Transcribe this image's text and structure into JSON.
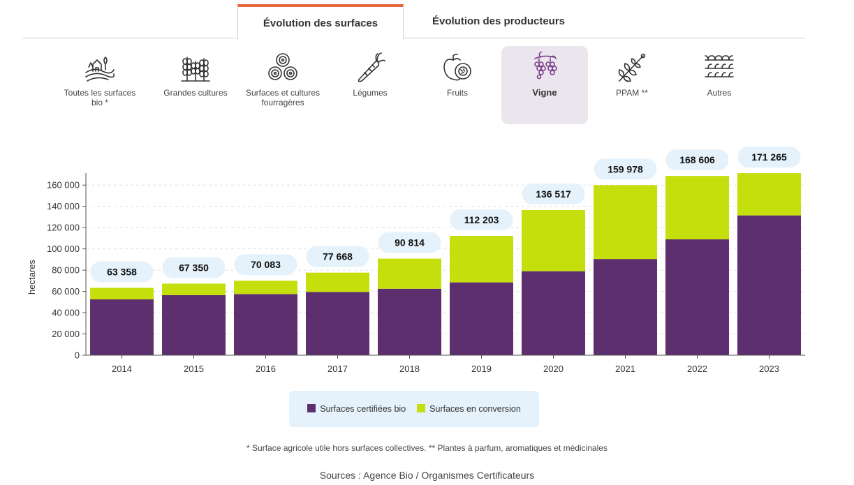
{
  "tabs": [
    {
      "label": "Évolution des surfaces",
      "active": true
    },
    {
      "label": "Évolution des producteurs",
      "active": false
    }
  ],
  "categories": [
    {
      "label": "Toutes les surfaces bio *",
      "icon": "farm-icon",
      "active": false
    },
    {
      "label": "Grandes cultures",
      "icon": "wheat-icon",
      "active": false
    },
    {
      "label": "Surfaces et cultures fourragères",
      "icon": "hay-bales-icon",
      "active": false
    },
    {
      "label": "Légumes",
      "icon": "carrot-icon",
      "active": false
    },
    {
      "label": "Fruits",
      "icon": "fruits-icon",
      "active": false
    },
    {
      "label": "Vigne",
      "icon": "grapes-icon",
      "active": true
    },
    {
      "label": "PPAM **",
      "icon": "herb-icon",
      "active": false
    },
    {
      "label": "Autres",
      "icon": "rows-plants-icon",
      "active": false
    }
  ],
  "colors": {
    "certified": "#5e2f6e",
    "conversion": "#c5df0d",
    "accent": "#e8663d",
    "label_bubble": "#e5f2fb"
  },
  "chart_data": {
    "type": "bar",
    "stacked": true,
    "categories": [
      "2014",
      "2015",
      "2016",
      "2017",
      "2018",
      "2019",
      "2020",
      "2021",
      "2022",
      "2023"
    ],
    "series": [
      {
        "name": "Surfaces certifiées bio",
        "values": [
          52500,
          56500,
          57500,
          59500,
          62500,
          68500,
          79000,
          90500,
          109000,
          131500
        ]
      },
      {
        "name": "Surfaces en conversion",
        "values": [
          10858,
          10850,
          12583,
          18168,
          28314,
          43703,
          57517,
          69478,
          59606,
          39765
        ]
      }
    ],
    "totals": [
      63358,
      67350,
      70083,
      77668,
      90814,
      112203,
      136517,
      159978,
      168606,
      171265
    ],
    "total_labels": [
      "63 358",
      "67 350",
      "70 083",
      "77 668",
      "90 814",
      "112 203",
      "136 517",
      "159 978",
      "168 606",
      "171 265"
    ],
    "ylabel": "hectares",
    "ylim": [
      0,
      170000
    ],
    "yticks": [
      0,
      20000,
      40000,
      60000,
      80000,
      100000,
      120000,
      140000,
      160000
    ],
    "ytick_labels": [
      "0",
      "20 000",
      "40 000",
      "60 000",
      "80 000",
      "100 000",
      "120 000",
      "140 000",
      "160 000"
    ],
    "grid": true,
    "legend_position": "bottom"
  },
  "legend": {
    "certified": "Surfaces certifiées bio",
    "conversion": "Surfaces en conversion"
  },
  "footnote": "* Surface agricole utile hors surfaces collectives. ** Plantes à parfum, aromatiques et médicinales",
  "source": "Sources : Agence Bio / Organismes Certificateurs"
}
